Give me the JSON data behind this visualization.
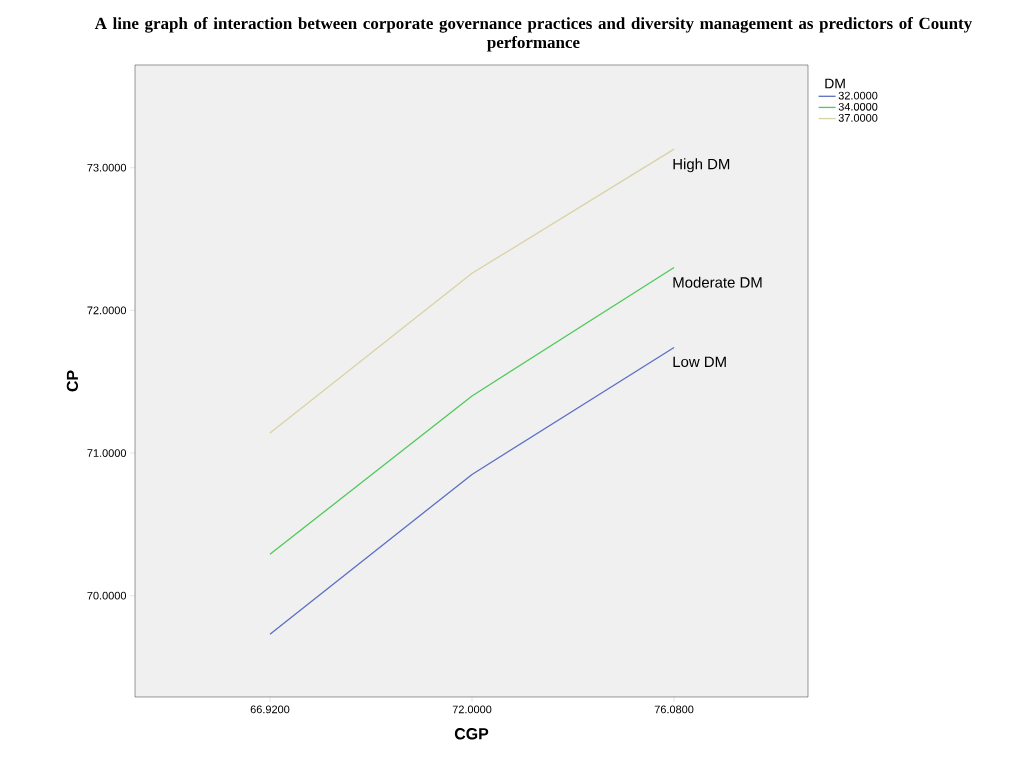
{
  "chart_data": {
    "type": "line",
    "title": "A line graph of interaction between corporate governance practices and diversity management as predictors of County performance",
    "xlabel": "CGP",
    "ylabel": "CP",
    "legend_title": "DM",
    "categories": [
      "66.9200",
      "72.0000",
      "76.0800"
    ],
    "series": [
      {
        "name": "32.0000",
        "color": "#5b6fc4",
        "values": [
          69.73,
          70.85,
          71.74
        ]
      },
      {
        "name": "34.0000",
        "color": "#4fc95a",
        "values": [
          70.29,
          71.4,
          72.3
        ]
      },
      {
        "name": "37.0000",
        "color": "#d8d2a4",
        "values": [
          71.14,
          72.26,
          73.13
        ]
      }
    ],
    "ylim": [
      69.29,
      73.72
    ],
    "yticks": [
      {
        "value": 70,
        "label": "70.0000"
      },
      {
        "value": 71,
        "label": "71.0000"
      },
      {
        "value": 72,
        "label": "72.0000"
      },
      {
        "value": 73,
        "label": "73.0000"
      }
    ],
    "annotations": [
      {
        "text": "High DM",
        "x": "76.0800",
        "y": 73.13
      },
      {
        "text": "Moderate DM",
        "x": "76.0800",
        "y": 72.3
      },
      {
        "text": "Low DM",
        "x": "76.0800",
        "y": 71.74
      }
    ],
    "legend": "top right",
    "grid": false,
    "marker": "none",
    "line_style": "solid"
  }
}
